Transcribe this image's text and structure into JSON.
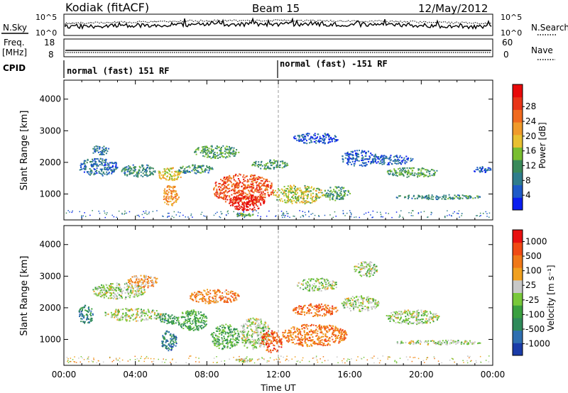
{
  "header": {
    "station": "Kodiak (fitACF)",
    "beam": "Beam 15",
    "date": "12/May/2012"
  },
  "top_panels": {
    "noise": {
      "left_label": "N.Sky",
      "right_label": "N.Search",
      "left_ticks": [
        "10^5",
        "10^0"
      ],
      "right_ticks": [
        "10^5",
        "10^0"
      ]
    },
    "freq": {
      "left_label_1": "Freq.",
      "left_label_2": "[MHz]",
      "right_label": "Nave",
      "left_ticks": [
        "18",
        "8"
      ],
      "right_ticks": [
        "60",
        "0"
      ]
    },
    "cpid": {
      "label": "CPID",
      "segments": [
        {
          "start_hour": 0,
          "text": "normal (fast) 151 RF"
        },
        {
          "start_hour": 12,
          "text": "normal (fast) -151 RF"
        }
      ]
    }
  },
  "chart_data": [
    {
      "type": "heatmap",
      "name": "Power",
      "ylabel": "Slant Range [km]",
      "ylim": [
        180,
        4600
      ],
      "yticks": [
        "1000",
        "2000",
        "3000",
        "4000"
      ],
      "xlim": [
        0,
        24
      ],
      "colorbar": {
        "label": "Power [dB]",
        "ticks": [
          "4",
          "8",
          "12",
          "16",
          "20",
          "24",
          "28"
        ],
        "colors": [
          "#0a1ef0",
          "#1e5ac8",
          "#2f7d8c",
          "#3a8a5a",
          "#79be30",
          "#e8c030",
          "#f09a2a",
          "#f06a1e",
          "#e83518",
          "#e80a0a"
        ]
      },
      "blobs": [
        {
          "t0": 0.8,
          "t1": 3.0,
          "r0": 1600,
          "r1": 2150,
          "level": 0.2
        },
        {
          "t0": 1.5,
          "t1": 2.5,
          "r0": 2250,
          "r1": 2550,
          "level": 0.25
        },
        {
          "t0": 3.2,
          "t1": 5.2,
          "r0": 1550,
          "r1": 1950,
          "level": 0.3
        },
        {
          "t0": 5.2,
          "t1": 6.6,
          "r0": 1450,
          "r1": 1850,
          "level": 0.55
        },
        {
          "t0": 5.5,
          "t1": 6.4,
          "r0": 650,
          "r1": 1300,
          "level": 0.65
        },
        {
          "t0": 6.4,
          "t1": 8.3,
          "r0": 1650,
          "r1": 1950,
          "level": 0.3
        },
        {
          "t0": 7.2,
          "t1": 9.8,
          "r0": 2150,
          "r1": 2550,
          "level": 0.35
        },
        {
          "t0": 8.3,
          "t1": 11.7,
          "r0": 700,
          "r1": 1650,
          "level": 0.8
        },
        {
          "t0": 9.2,
          "t1": 11.2,
          "r0": 500,
          "r1": 1000,
          "level": 0.95
        },
        {
          "t0": 10.5,
          "t1": 12.5,
          "r0": 1800,
          "r1": 2100,
          "level": 0.35
        },
        {
          "t0": 11.7,
          "t1": 14.5,
          "r0": 700,
          "r1": 1300,
          "level": 0.5
        },
        {
          "t0": 9.6,
          "t1": 10.6,
          "r0": 300,
          "r1": 420,
          "level": 0.4
        },
        {
          "t0": 14.5,
          "t1": 16.0,
          "r0": 800,
          "r1": 1250,
          "level": 0.35
        },
        {
          "t0": 12.8,
          "t1": 15.3,
          "r0": 2600,
          "r1": 2950,
          "level": 0.12
        },
        {
          "t0": 15.5,
          "t1": 17.5,
          "r0": 1900,
          "r1": 2400,
          "level": 0.15
        },
        {
          "t0": 18.0,
          "t1": 21.0,
          "r0": 1550,
          "r1": 1850,
          "level": 0.35
        },
        {
          "t0": 18.5,
          "t1": 23.3,
          "r0": 850,
          "r1": 1000,
          "level": 0.3
        },
        {
          "t0": 17.0,
          "t1": 19.5,
          "r0": 1950,
          "r1": 2250,
          "level": 0.15
        },
        {
          "t0": 22.8,
          "t1": 24.0,
          "r0": 1700,
          "r1": 1900,
          "level": 0.15
        }
      ]
    },
    {
      "type": "heatmap",
      "name": "Velocity",
      "ylabel": "Slant Range [km]",
      "ylim": [
        180,
        4600
      ],
      "yticks": [
        "1000",
        "2000",
        "3000",
        "4000"
      ],
      "xlim": [
        0,
        24
      ],
      "xticks": [
        "00:00",
        "04:00",
        "08:00",
        "12:00",
        "16:00",
        "20:00",
        "00:00"
      ],
      "xlabel": "Time UT",
      "colorbar": {
        "label": "Velocity [m s⁻¹]",
        "ticks": [
          "1000",
          "500",
          "100",
          "25",
          "-25",
          "-100",
          "-500",
          "-1000"
        ],
        "colors": [
          "#1a3ca8",
          "#2f6fb0",
          "#2f8a5a",
          "#3aa040",
          "#78c83a",
          "#c8c8c8",
          "#f0a020",
          "#f07818",
          "#f04a14",
          "#e81010"
        ]
      },
      "blobs": [
        {
          "t0": 0.8,
          "t1": 1.6,
          "r0": 1500,
          "r1": 2100,
          "level": 0.22
        },
        {
          "t0": 1.6,
          "t1": 4.5,
          "r0": 2300,
          "r1": 2800,
          "level": 0.5
        },
        {
          "t0": 2.2,
          "t1": 5.5,
          "r0": 1600,
          "r1": 2000,
          "level": 0.5
        },
        {
          "t0": 3.5,
          "t1": 5.3,
          "r0": 2650,
          "r1": 3050,
          "level": 0.68
        },
        {
          "t0": 5.3,
          "t1": 6.4,
          "r0": 1500,
          "r1": 1850,
          "level": 0.32
        },
        {
          "t0": 5.4,
          "t1": 6.3,
          "r0": 650,
          "r1": 1300,
          "level": 0.2
        },
        {
          "t0": 6.3,
          "t1": 8.0,
          "r0": 1300,
          "r1": 1950,
          "level": 0.35
        },
        {
          "t0": 7.0,
          "t1": 9.8,
          "r0": 2150,
          "r1": 2600,
          "level": 0.72
        },
        {
          "t0": 8.2,
          "t1": 9.8,
          "r0": 700,
          "r1": 1500,
          "level": 0.38
        },
        {
          "t0": 9.8,
          "t1": 11.5,
          "r0": 700,
          "r1": 1700,
          "level": 0.5
        },
        {
          "t0": 11.0,
          "t1": 12.2,
          "r0": 600,
          "r1": 1300,
          "level": 0.82
        },
        {
          "t0": 12.2,
          "t1": 15.8,
          "r0": 800,
          "r1": 1500,
          "level": 0.75
        },
        {
          "t0": 12.8,
          "t1": 15.3,
          "r0": 1750,
          "r1": 2150,
          "level": 0.78
        },
        {
          "t0": 13.0,
          "t1": 15.3,
          "r0": 2550,
          "r1": 2950,
          "level": 0.5
        },
        {
          "t0": 15.5,
          "t1": 17.6,
          "r0": 1900,
          "r1": 2400,
          "level": 0.5
        },
        {
          "t0": 18.0,
          "t1": 21.0,
          "r0": 1500,
          "r1": 1950,
          "level": 0.5
        },
        {
          "t0": 18.5,
          "t1": 23.3,
          "r0": 850,
          "r1": 1000,
          "level": 0.5
        },
        {
          "t0": 9.6,
          "t1": 10.6,
          "r0": 300,
          "r1": 420,
          "level": 0.52
        },
        {
          "t0": 16.2,
          "t1": 17.5,
          "r0": 3000,
          "r1": 3500,
          "level": 0.5
        }
      ]
    }
  ]
}
